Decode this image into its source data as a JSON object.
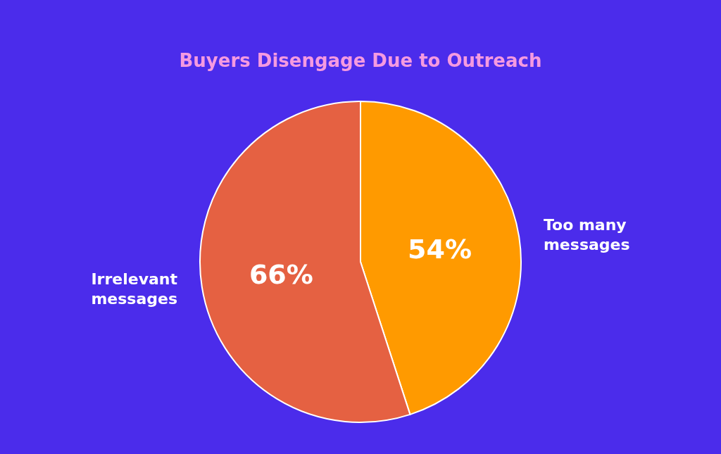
{
  "chart_data": {
    "type": "pie",
    "title": "Buyers Disengage Due to Outreach",
    "categories": [
      "Too many\nmessages",
      "Irrelevant\nmessages"
    ],
    "values": [
      54,
      66
    ],
    "value_labels": [
      "54%",
      "66%"
    ],
    "colors": [
      "#ff9a00",
      "#e56142"
    ],
    "legend": false
  }
}
